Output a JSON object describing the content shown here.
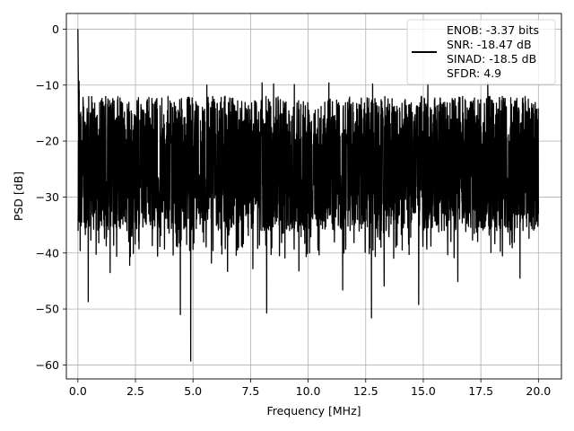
{
  "chart_data": {
    "type": "line",
    "xlabel": "Frequency [MHz]",
    "ylabel": "PSD [dB]",
    "xlim": [
      -0.5,
      21.0
    ],
    "ylim": [
      -62.5,
      2.8
    ],
    "xticks": [
      0.0,
      2.5,
      5.0,
      7.5,
      10.0,
      12.5,
      15.0,
      17.5,
      20.0
    ],
    "xtick_labels": [
      "0.0",
      "2.5",
      "5.0",
      "7.5",
      "10.0",
      "12.5",
      "15.0",
      "17.5",
      "20.0"
    ],
    "yticks": [
      0,
      -10,
      -20,
      -30,
      -40,
      -50,
      -60
    ],
    "ytick_labels": [
      "0",
      "−10",
      "−20",
      "−30",
      "−40",
      "−50",
      "−60"
    ],
    "grid": true,
    "legend_position": "top-right",
    "series": [
      {
        "color": "#000000",
        "style": "noise-floor spectrum",
        "x_range": [
          0.0,
          20.0
        ],
        "peak": {
          "x": 0.0,
          "y": 0.0
        },
        "mean_level_db": -22,
        "upper_envelope_db": -14,
        "deep_nulls": [
          {
            "x": 0.45,
            "y": -48.7
          },
          {
            "x": 1.4,
            "y": -43.5
          },
          {
            "x": 2.25,
            "y": -42.2
          },
          {
            "x": 4.45,
            "y": -51.0
          },
          {
            "x": 4.9,
            "y": -59.3
          },
          {
            "x": 5.8,
            "y": -41.8
          },
          {
            "x": 6.5,
            "y": -43.3
          },
          {
            "x": 7.6,
            "y": -42.8
          },
          {
            "x": 8.2,
            "y": -50.7
          },
          {
            "x": 9.6,
            "y": -43.2
          },
          {
            "x": 11.5,
            "y": -46.6
          },
          {
            "x": 12.75,
            "y": -51.6
          },
          {
            "x": 13.3,
            "y": -45.9
          },
          {
            "x": 14.8,
            "y": -49.2
          },
          {
            "x": 16.5,
            "y": -45.1
          },
          {
            "x": 17.8,
            "y": -46.4
          },
          {
            "x": 19.2,
            "y": -44.5
          }
        ],
        "high_spikes": [
          {
            "x": 0.05,
            "y": -9.3
          },
          {
            "x": 5.6,
            "y": -10.0
          },
          {
            "x": 8.0,
            "y": -9.6
          },
          {
            "x": 8.5,
            "y": -9.8
          },
          {
            "x": 9.4,
            "y": -9.9
          },
          {
            "x": 10.9,
            "y": -9.6
          },
          {
            "x": 12.8,
            "y": -9.8
          },
          {
            "x": 15.2,
            "y": -9.8
          },
          {
            "x": 17.8,
            "y": -9.6
          }
        ]
      }
    ],
    "legend": {
      "lines": [
        "ENOB: -3.37 bits",
        "SNR: -18.47 dB",
        "SINAD: -18.5 dB",
        "SFDR: 4.9"
      ]
    }
  }
}
